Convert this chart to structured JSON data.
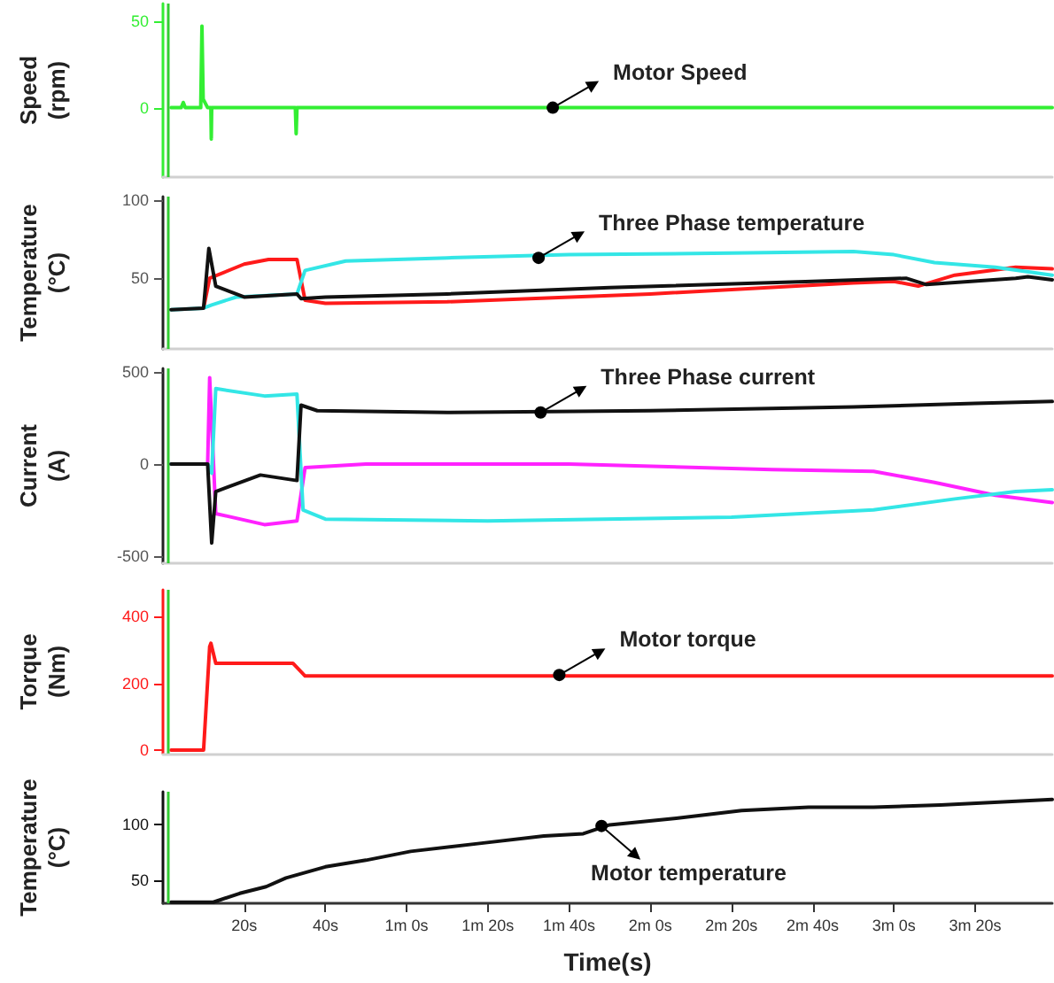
{
  "chart_data": [
    {
      "type": "line",
      "ylabel": "Speed (rpm)",
      "xlim": [
        0,
        219
      ],
      "ylim": [
        -40,
        60
      ],
      "yticks": [
        0,
        50
      ],
      "tick_labels": "y",
      "series": [
        {
          "color": "#33ee33",
          "x": [
            2,
            4.5,
            5,
            5.5,
            9.3,
            9.6,
            9.9,
            11,
            11.8,
            11.9,
            12,
            32.6,
            32.8,
            33,
            219
          ],
          "values": [
            0,
            0,
            3,
            0,
            0,
            47,
            5,
            0,
            0,
            -18,
            0,
            0,
            -15,
            0,
            0
          ]
        }
      ],
      "ref_lines": [
        {
          "axis": "x",
          "value": 1.3,
          "color": "#33cc33"
        }
      ],
      "annotations": [
        {
          "text": "Motor Speed",
          "x": 96,
          "y": 0
        }
      ]
    },
    {
      "type": "line",
      "ylabel": "Temperature (°C)",
      "xlim": [
        0,
        219
      ],
      "ylim": [
        5,
        102
      ],
      "yticks": [
        50,
        100
      ],
      "tick_labels": "y",
      "series": [
        {
          "color": "#ff1a1a",
          "x": [
            10,
            11.5,
            20,
            26,
            33,
            35,
            40,
            70,
            120,
            170,
            180,
            186,
            195,
            210,
            219
          ],
          "values": [
            31,
            50,
            59,
            62,
            62,
            36,
            34,
            35,
            40,
            47,
            48,
            45,
            52,
            57,
            56
          ]
        },
        {
          "color": "#33e6e6",
          "x": [
            2,
            10,
            12,
            18,
            33,
            35,
            45,
            70,
            100,
            140,
            170,
            180,
            190,
            205,
            219
          ],
          "values": [
            30,
            31,
            33,
            38,
            40,
            55,
            61,
            63,
            65,
            66,
            67,
            65,
            60,
            57,
            52
          ]
        },
        {
          "color": "#111111",
          "x": [
            2,
            10,
            11.3,
            13,
            20,
            33,
            34,
            40,
            70,
            110,
            160,
            183,
            188,
            210,
            213,
            219
          ],
          "values": [
            30,
            31,
            69,
            45,
            38,
            40,
            37,
            38,
            40,
            44,
            48,
            50,
            46,
            50,
            51,
            49
          ]
        }
      ],
      "ref_lines": [
        {
          "axis": "x",
          "value": 1.3,
          "color": "#33cc33"
        }
      ],
      "annotations": [
        {
          "text": "Three Phase temperature",
          "x": 92.5,
          "y": 63
        }
      ]
    },
    {
      "type": "line",
      "ylabel": "Current (A)",
      "xlim": [
        0,
        219
      ],
      "ylim": [
        -540,
        520
      ],
      "yticks": [
        -500,
        0,
        500
      ],
      "tick_labels": "y",
      "series": [
        {
          "color": "#ff22ff",
          "x": [
            2,
            11,
            11.5,
            13,
            25,
            33,
            35,
            50,
            100,
            150,
            175,
            190,
            205,
            219
          ],
          "values": [
            0,
            0,
            470,
            -270,
            -330,
            -310,
            -20,
            0,
            0,
            -30,
            -40,
            -100,
            -170,
            -210
          ]
        },
        {
          "color": "#33e6e6",
          "x": [
            2,
            11,
            12,
            13,
            25,
            33,
            34.5,
            40,
            80,
            140,
            175,
            195,
            210,
            219
          ],
          "values": [
            0,
            0,
            -50,
            410,
            370,
            380,
            -250,
            -300,
            -310,
            -290,
            -250,
            -190,
            -150,
            -140
          ]
        },
        {
          "color": "#111111",
          "x": [
            2,
            11,
            12,
            13,
            24,
            33,
            34,
            38,
            70,
            120,
            170,
            200,
            219
          ],
          "values": [
            0,
            0,
            -430,
            -150,
            -60,
            -90,
            320,
            290,
            280,
            290,
            310,
            330,
            340
          ]
        }
      ],
      "ref_lines": [
        {
          "axis": "x",
          "value": 1.3,
          "color": "#33cc33"
        }
      ],
      "annotations": [
        {
          "text": "Three Phase current",
          "x": 93,
          "y": 280
        }
      ]
    },
    {
      "type": "line",
      "ylabel": "Torque (Nm)",
      "xlim": [
        0,
        219
      ],
      "ylim": [
        -10,
        480
      ],
      "yticks": [
        0,
        200,
        400
      ],
      "tick_labels": "y",
      "series": [
        {
          "color": "#ff1a1a",
          "x": [
            2,
            10,
            11.5,
            11.8,
            13,
            32,
            35,
            219
          ],
          "values": [
            0,
            0,
            310,
            320,
            260,
            260,
            222,
            222
          ]
        }
      ],
      "ref_lines": [
        {
          "axis": "x",
          "value": 1.3,
          "color": "#33cc33"
        }
      ],
      "annotations": [
        {
          "text": "Motor torque",
          "x": 97.6,
          "y": 225
        }
      ]
    },
    {
      "type": "line",
      "ylabel": "Temperature (°C)",
      "xlabel": "Time(s)",
      "xlim": [
        0,
        219
      ],
      "ylim": [
        29,
        130
      ],
      "yticks": [
        50,
        100
      ],
      "xticks": [
        {
          "value": 20,
          "label": "20s"
        },
        {
          "value": 40,
          "label": "40s"
        },
        {
          "value": 60,
          "label": "1m 0s"
        },
        {
          "value": 80,
          "label": "1m 20s"
        },
        {
          "value": 100,
          "label": "1m 40s"
        },
        {
          "value": 120,
          "label": "2m 0s"
        },
        {
          "value": 140,
          "label": "2m 20s"
        },
        {
          "value": 160,
          "label": "2m 40s"
        },
        {
          "value": 180,
          "label": "3m 0s"
        },
        {
          "value": 200,
          "label": "3m 20s"
        }
      ],
      "series": [
        {
          "color": "#111111",
          "x": [
            2,
            12.4,
            18.9,
            25.4,
            30.3,
            40,
            50,
            61,
            77.5,
            93.8,
            103.5,
            110,
            126.4,
            142.5,
            159,
            175,
            191.5,
            208,
            219
          ],
          "values": [
            30,
            30,
            38,
            44,
            52,
            62,
            68,
            76,
            83,
            90,
            92,
            100,
            106,
            113,
            116,
            116,
            118,
            121,
            123
          ]
        }
      ],
      "ref_lines": [
        {
          "axis": "x",
          "value": 1.3,
          "color": "#33cc33"
        }
      ],
      "annotations": [
        {
          "text": "Motor temperature",
          "x": 108,
          "y": 99
        }
      ]
    }
  ]
}
